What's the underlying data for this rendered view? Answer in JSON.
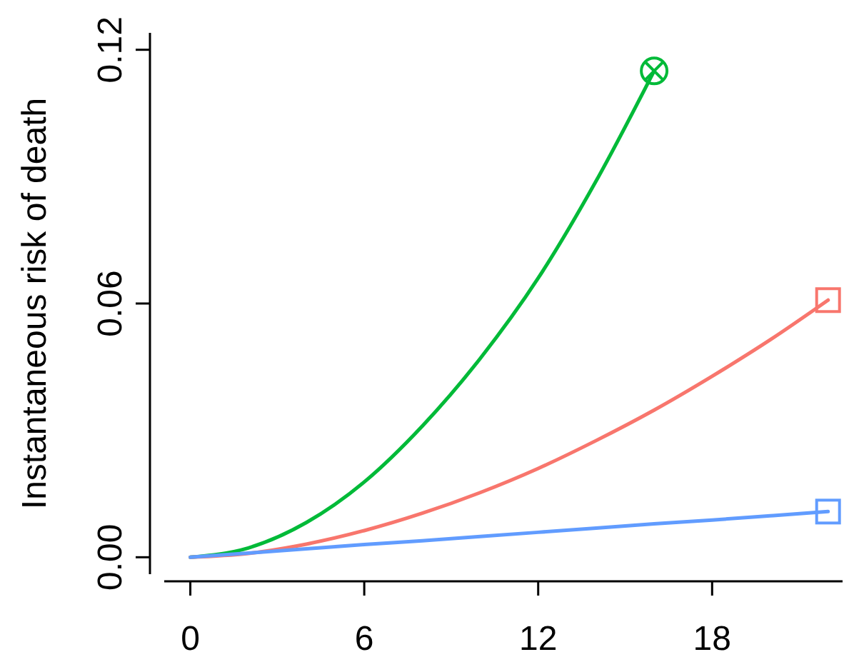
{
  "chart_data": {
    "type": "line",
    "ylabel": "Instantaneous risk of death",
    "xlim": [
      -0.9,
      22.5
    ],
    "ylim": [
      -0.004,
      0.124
    ],
    "xticks": [
      0,
      6,
      12,
      18
    ],
    "yticks": [
      {
        "value": 0,
        "label": "0.00"
      },
      {
        "value": 0.06,
        "label": "0.06"
      },
      {
        "value": 0.12,
        "label": "0.12"
      }
    ],
    "grid": false,
    "line_style": "solid",
    "series": [
      {
        "color": "#00ba38",
        "x": [
          0,
          2,
          4,
          6,
          8,
          10,
          12,
          14,
          16
        ],
        "values": [
          0,
          0.0022,
          0.0082,
          0.0178,
          0.031,
          0.047,
          0.066,
          0.089,
          0.115
        ]
      },
      {
        "color": "#f8766d",
        "x": [
          0,
          2,
          4,
          6,
          8,
          10,
          12,
          14,
          16,
          18,
          20,
          22
        ],
        "values": [
          0,
          0.0009,
          0.0031,
          0.0063,
          0.0104,
          0.0153,
          0.021,
          0.0276,
          0.0348,
          0.0428,
          0.0514,
          0.0608
        ]
      },
      {
        "color": "#619cff",
        "x": [
          0,
          2,
          4,
          6,
          8,
          10,
          12,
          14,
          16,
          18,
          20,
          22
        ],
        "values": [
          0,
          0.001,
          0.002,
          0.003,
          0.0039,
          0.0049,
          0.0059,
          0.0069,
          0.0079,
          0.0088,
          0.0098,
          0.0108
        ]
      },
      {
        "type": "scatter",
        "marker": "circle",
        "color": "#00ba38",
        "x": [
          16
        ],
        "values": [
          0.115
        ]
      },
      {
        "type": "scatter",
        "marker": "square",
        "color": "#f8766d",
        "x": [
          22
        ],
        "values": [
          0.0608
        ]
      },
      {
        "type": "scatter",
        "marker": "square",
        "color": "#619cff",
        "x": [
          22
        ],
        "values": [
          0.0108
        ]
      }
    ]
  }
}
